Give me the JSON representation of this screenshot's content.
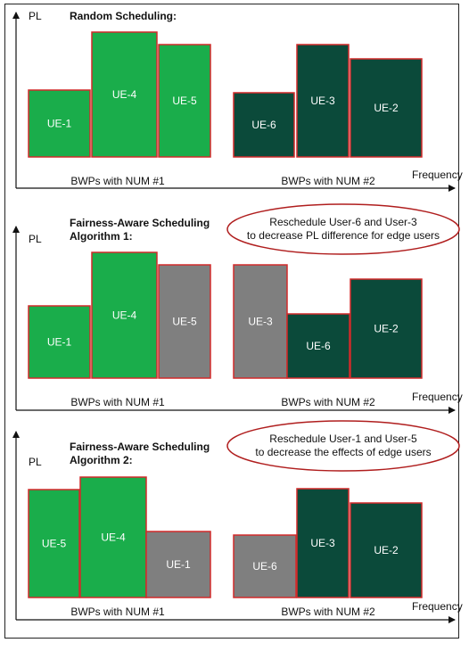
{
  "colors": {
    "light_green": "#1aad4b",
    "dark_green": "#0b4a3a",
    "gray": "#7f7f7f",
    "border_red": "#d22a2a",
    "ellipse_red": "#b01e1e"
  },
  "panels": [
    {
      "title_lines": [
        "Random Scheduling:"
      ],
      "y_label": "PL",
      "x_label": "Frequency",
      "group_labels": [
        "BWPs with NUM #1",
        "BWPs with NUM #2"
      ],
      "note_lines": [],
      "blocks": [
        {
          "label": "UE-1",
          "color": "light_green"
        },
        {
          "label": "UE-4",
          "color": "light_green"
        },
        {
          "label": "UE-5",
          "color": "light_green"
        },
        {
          "label": "UE-6",
          "color": "dark_green"
        },
        {
          "label": "UE-3",
          "color": "dark_green"
        },
        {
          "label": "UE-2",
          "color": "dark_green"
        }
      ]
    },
    {
      "title_lines": [
        "Fairness-Aware Scheduling",
        "Algorithm 1:"
      ],
      "y_label": "PL",
      "x_label": "Frequency",
      "group_labels": [
        "BWPs with NUM #1",
        "BWPs with NUM #2"
      ],
      "note_lines": [
        "Reschedule User-6 and User-3",
        "to decrease PL difference for edge users"
      ],
      "blocks": [
        {
          "label": "UE-1",
          "color": "light_green"
        },
        {
          "label": "UE-4",
          "color": "light_green"
        },
        {
          "label": "UE-5",
          "color": "gray"
        },
        {
          "label": "UE-3",
          "color": "gray"
        },
        {
          "label": "UE-6",
          "color": "dark_green"
        },
        {
          "label": "UE-2",
          "color": "dark_green"
        }
      ]
    },
    {
      "title_lines": [
        "Fairness-Aware Scheduling",
        "Algorithm 2:"
      ],
      "y_label": "PL",
      "x_label": "Frequency",
      "group_labels": [
        "BWPs with NUM #1",
        "BWPs with NUM #2"
      ],
      "note_lines": [
        "Reschedule User-1 and User-5",
        "to decrease the effects of edge users"
      ],
      "blocks": [
        {
          "label": "UE-5",
          "color": "light_green"
        },
        {
          "label": "UE-4",
          "color": "light_green"
        },
        {
          "label": "UE-1",
          "color": "gray"
        },
        {
          "label": "UE-6",
          "color": "gray"
        },
        {
          "label": "UE-3",
          "color": "dark_green"
        },
        {
          "label": "UE-2",
          "color": "dark_green"
        }
      ]
    }
  ]
}
